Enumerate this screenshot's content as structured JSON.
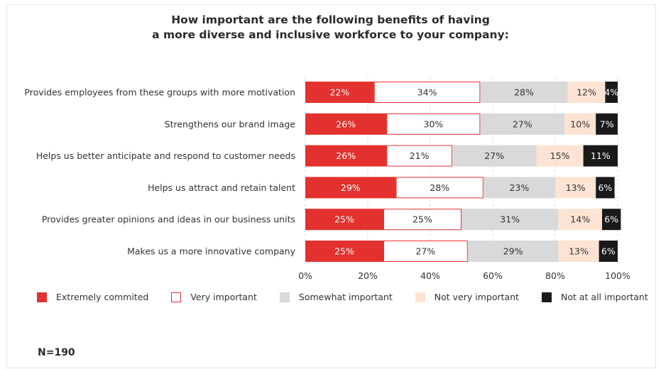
{
  "chart_data": {
    "type": "bar",
    "orientation": "horizontal",
    "stacked": true,
    "normalized_percent": true,
    "title_lines": [
      "How important are the following benefits of having",
      "a more diverse and inclusive workforce to your company:"
    ],
    "categories": [
      "Provides employees from these groups with more motivation",
      "Strengthens our brand image",
      "Helps us better anticipate and respond to customer needs",
      "Helps us attract and retain talent",
      "Provides greater opinions and ideas in our business units",
      "Makes us a more innovative company"
    ],
    "series": [
      {
        "name": "Extremely commited",
        "color": "#e3312f",
        "text_color": "#ffffff",
        "border": "#e3312f",
        "values": [
          22,
          26,
          26,
          29,
          25,
          25
        ]
      },
      {
        "name": "Very important",
        "color": "#ffffff",
        "text_color": "#333333",
        "border": "#e3312f",
        "values": [
          34,
          30,
          21,
          28,
          25,
          27
        ]
      },
      {
        "name": "Somewhat important",
        "color": "#d9d9d9",
        "text_color": "#333333",
        "border": "#d9d9d9",
        "values": [
          28,
          27,
          27,
          23,
          31,
          29
        ]
      },
      {
        "name": "Not very important",
        "color": "#fde3d3",
        "text_color": "#333333",
        "border": "#fde3d3",
        "values": [
          12,
          10,
          15,
          13,
          14,
          13
        ]
      },
      {
        "name": "Not at all important",
        "color": "#1a1a1a",
        "text_color": "#ffffff",
        "border": "#1a1a1a",
        "values": [
          4,
          7,
          11,
          6,
          6,
          6
        ]
      }
    ],
    "data_labels_suffix": "%",
    "x_ticks": [
      "0%",
      "20%",
      "40%",
      "60%",
      "80%",
      "100%"
    ],
    "xlim": [
      0,
      100
    ],
    "grid": true,
    "legend_position": "bottom"
  },
  "footnote": "N=190"
}
